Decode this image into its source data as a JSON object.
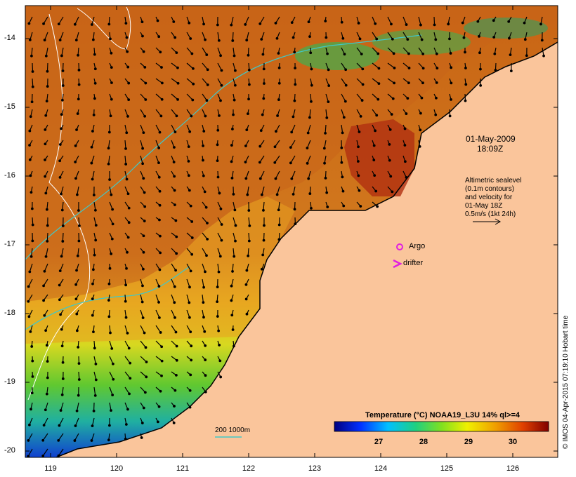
{
  "map": {
    "title_date": "01-May-2009",
    "title_time": "18:09Z",
    "altimetry_note": [
      "Altimetric sealevel",
      "(0.1m contours)",
      "and velocity for",
      "01-May 18Z",
      "0.5m/s (1kt 24h)"
    ],
    "legend_argo": "Argo",
    "legend_drifter": "drifter",
    "depth_legend": "200  1000m",
    "credit": "© IMOS 04-Apr-2015 07:19:10 Hobart time",
    "colorbar_title": "Temperature (°C) NOAA19_L3U 14% ql>=4",
    "colorbar_ticks": [
      "27",
      "28",
      "29",
      "30"
    ],
    "lat_ticks": [
      "-14",
      "-15",
      "-16",
      "-17",
      "-18",
      "-19",
      "-20"
    ],
    "lon_ticks": [
      "119",
      "120",
      "121",
      "122",
      "123",
      "124",
      "125",
      "126"
    ],
    "colors": {
      "land": "#fac59b",
      "sst_warm": "#c8641a",
      "sst_mid": "#e8a020",
      "sst_cool": "#3cc84a",
      "argo": "#e020e0",
      "drifter": "#e020e0",
      "contour_200": "#40c8c8"
    }
  }
}
